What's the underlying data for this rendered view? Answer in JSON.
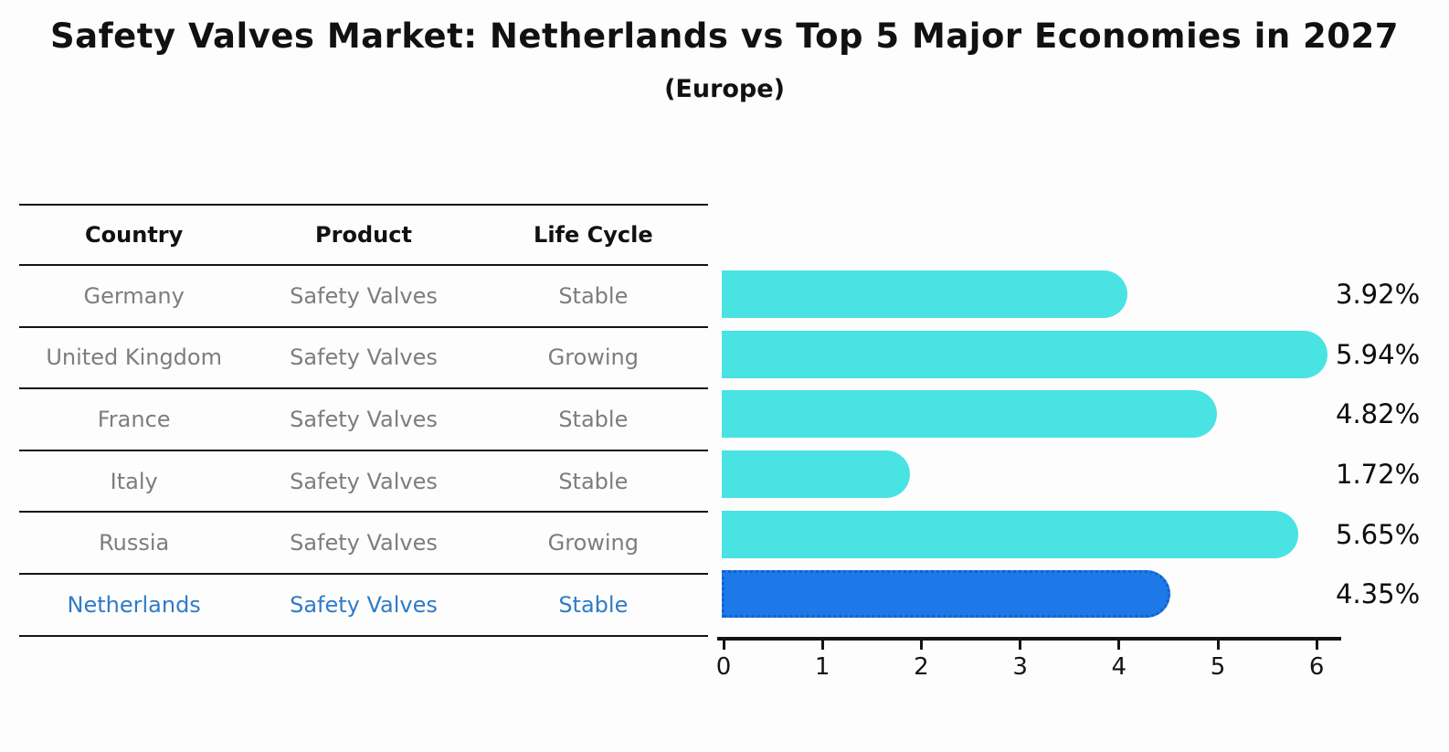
{
  "header": {
    "title": "Safety Valves Market: Netherlands vs Top 5 Major Economies in 2027",
    "subtitle": "(Europe)"
  },
  "table": {
    "columns": [
      "Country",
      "Product",
      "Life Cycle"
    ],
    "rows": [
      {
        "country": "Germany",
        "product": "Safety Valves",
        "life_cycle": "Stable",
        "highlight": false
      },
      {
        "country": "United Kingdom",
        "product": "Safety Valves",
        "life_cycle": "Growing",
        "highlight": false
      },
      {
        "country": "France",
        "product": "Safety Valves",
        "life_cycle": "Stable",
        "highlight": false
      },
      {
        "country": "Italy",
        "product": "Safety Valves",
        "life_cycle": "Stable",
        "highlight": false
      },
      {
        "country": "Russia",
        "product": "Safety Valves",
        "life_cycle": "Growing",
        "highlight": false
      },
      {
        "country": "Netherlands",
        "product": "Safety Valves",
        "life_cycle": "Stable",
        "highlight": true
      }
    ]
  },
  "chart_data": {
    "type": "bar",
    "orientation": "horizontal",
    "title": "Safety Valves Market: Netherlands vs Top 5 Major Economies in 2027 (Europe)",
    "categories": [
      "Germany",
      "United Kingdom",
      "France",
      "Italy",
      "Russia",
      "Netherlands"
    ],
    "values": [
      3.92,
      5.94,
      4.82,
      1.72,
      5.65,
      4.35
    ],
    "value_labels": [
      "3.92%",
      "5.94%",
      "4.82%",
      "1.72%",
      "5.65%",
      "4.35%"
    ],
    "xlim": [
      0,
      6
    ],
    "xticks": [
      0,
      1,
      2,
      3,
      4,
      5,
      6
    ],
    "grid": false,
    "legend": null,
    "bar_color": "#49E3E3",
    "highlight_index": 5,
    "highlight_color": "#1E79E8",
    "highlight_border_color": "#1360cf",
    "axis_color": "#141414",
    "label_color": "#0d0d0d",
    "table_text_color": "#7d7d7d",
    "highlight_text_color": "#2F7BC8"
  }
}
